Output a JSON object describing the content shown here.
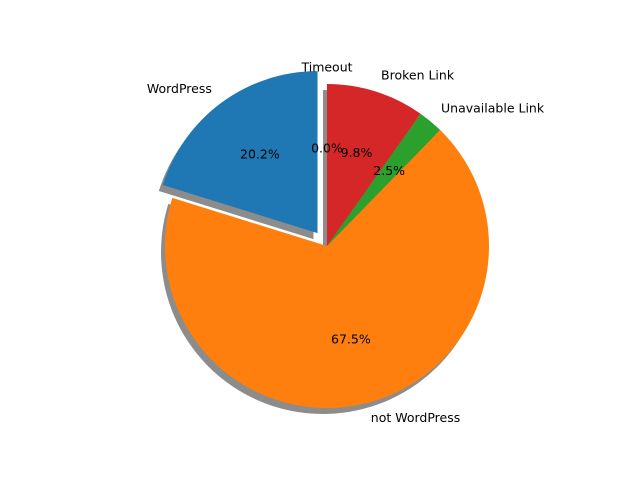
{
  "chart_data": {
    "type": "pie",
    "title": "",
    "slices": [
      {
        "label": "WordPress",
        "value": 20.2,
        "pct_text": "20.2%",
        "color": "#1f77b4",
        "exploded": true
      },
      {
        "label": "not WordPress",
        "value": 67.5,
        "pct_text": "67.5%",
        "color": "#ff7f0e",
        "exploded": false
      },
      {
        "label": "Unavailable Link",
        "value": 2.5,
        "pct_text": "2.5%",
        "color": "#2ca02c",
        "exploded": false
      },
      {
        "label": "Broken Link",
        "value": 9.8,
        "pct_text": "9.8%",
        "color": "#d62728",
        "exploded": false
      },
      {
        "label": "Timeout",
        "value": 0.0,
        "pct_text": "0.0%",
        "color": "#9467bd",
        "exploded": false
      }
    ],
    "start_angle_deg": 90,
    "direction": "counterclockwise",
    "shadow": true,
    "legend": "none"
  }
}
